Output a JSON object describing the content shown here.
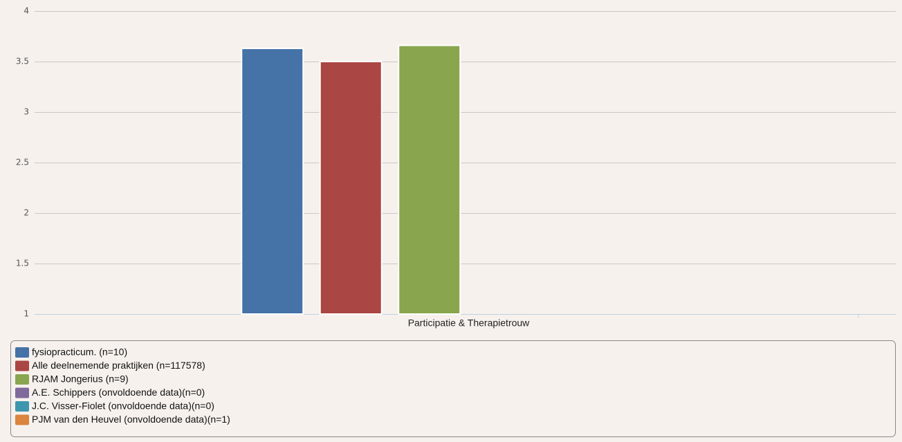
{
  "chart_data": {
    "type": "bar",
    "categories": [
      "Participatie & Therapietrouw"
    ],
    "series": [
      {
        "name": "fysiopracticum. (n=10)",
        "color": "#4572a7",
        "values": [
          3.63
        ]
      },
      {
        "name": "Alle deelnemende praktijken (n=117578)",
        "color": "#aa4643",
        "values": [
          3.5
        ]
      },
      {
        "name": "RJAM Jongerius (n=9)",
        "color": "#89a54e",
        "values": [
          3.66
        ]
      },
      {
        "name": "A.E. Schippers (onvoldoende data)(n=0)",
        "color": "#80699b",
        "values": [
          null
        ]
      },
      {
        "name": "J.C. Visser-Fiolet (onvoldoende data)(n=0)",
        "color": "#3d96ae",
        "values": [
          null
        ]
      },
      {
        "name": "PJM van den Heuvel (onvoldoende data)(n=1)",
        "color": "#db843d",
        "values": [
          null
        ]
      }
    ],
    "ylim": [
      1,
      4
    ],
    "yticks": [
      1,
      1.5,
      2,
      2.5,
      3,
      3.5,
      4
    ],
    "grid": true,
    "legend": "bottom"
  }
}
